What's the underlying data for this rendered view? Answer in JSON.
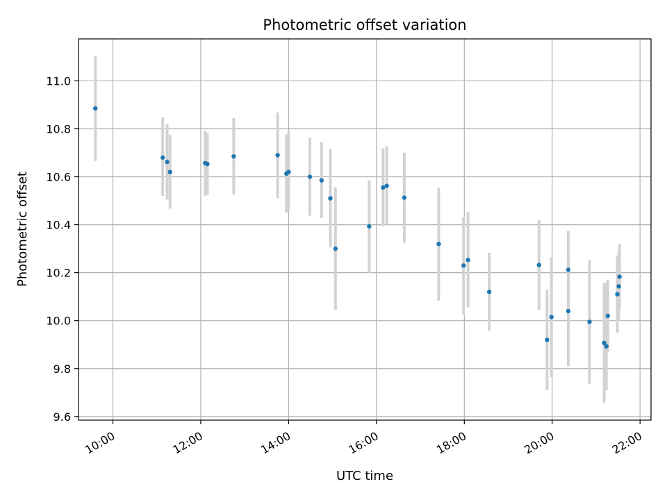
{
  "chart_data": {
    "type": "scatter",
    "title": "Photometric offset variation",
    "xlabel": "UTC time",
    "ylabel": "Photometric offset",
    "x_tick_labels": [
      "10:00",
      "12:00",
      "14:00",
      "16:00",
      "18:00",
      "20:00",
      "22:00"
    ],
    "y_tick_labels": [
      "9.6",
      "9.8",
      "10.0",
      "10.2",
      "10.4",
      "10.6",
      "10.8",
      "11.0"
    ],
    "xlim": [
      "09:13",
      "22:15"
    ],
    "ylim": [
      9.585,
      11.175
    ],
    "grid": true,
    "colors": {
      "point": "#1f77b4",
      "errorbar": "#d3d3d3",
      "grid": "#b0b0b0"
    },
    "points": [
      {
        "x": "09:36",
        "y": 10.885,
        "ylow": 10.665,
        "yhigh": 11.105
      },
      {
        "x": "11:08",
        "y": 10.68,
        "ylow": 10.52,
        "yhigh": 10.848
      },
      {
        "x": "11:14",
        "y": 10.662,
        "ylow": 10.505,
        "yhigh": 10.82
      },
      {
        "x": "11:18",
        "y": 10.62,
        "ylow": 10.467,
        "yhigh": 10.775
      },
      {
        "x": "12:06",
        "y": 10.657,
        "ylow": 10.52,
        "yhigh": 10.79
      },
      {
        "x": "12:09",
        "y": 10.653,
        "ylow": 10.525,
        "yhigh": 10.782
      },
      {
        "x": "12:45",
        "y": 10.685,
        "ylow": 10.525,
        "yhigh": 10.845
      },
      {
        "x": "13:45",
        "y": 10.69,
        "ylow": 10.51,
        "yhigh": 10.868
      },
      {
        "x": "13:57",
        "y": 10.613,
        "ylow": 10.45,
        "yhigh": 10.776
      },
      {
        "x": "14:00",
        "y": 10.62,
        "ylow": 10.46,
        "yhigh": 10.79
      },
      {
        "x": "14:29",
        "y": 10.6,
        "ylow": 10.438,
        "yhigh": 10.762
      },
      {
        "x": "14:45",
        "y": 10.585,
        "ylow": 10.428,
        "yhigh": 10.745
      },
      {
        "x": "14:57",
        "y": 10.51,
        "ylow": 10.305,
        "yhigh": 10.716
      },
      {
        "x": "15:04",
        "y": 10.3,
        "ylow": 10.045,
        "yhigh": 10.556
      },
      {
        "x": "15:50",
        "y": 10.393,
        "ylow": 10.2,
        "yhigh": 10.585
      },
      {
        "x": "16:09",
        "y": 10.555,
        "ylow": 10.393,
        "yhigh": 10.718
      },
      {
        "x": "16:14",
        "y": 10.562,
        "ylow": 10.4,
        "yhigh": 10.728
      },
      {
        "x": "16:38",
        "y": 10.513,
        "ylow": 10.325,
        "yhigh": 10.7
      },
      {
        "x": "17:25",
        "y": 10.32,
        "ylow": 10.083,
        "yhigh": 10.555
      },
      {
        "x": "17:59",
        "y": 10.23,
        "ylow": 10.025,
        "yhigh": 10.432
      },
      {
        "x": "18:05",
        "y": 10.253,
        "ylow": 10.055,
        "yhigh": 10.452
      },
      {
        "x": "18:34",
        "y": 10.12,
        "ylow": 9.957,
        "yhigh": 10.283
      },
      {
        "x": "19:42",
        "y": 10.232,
        "ylow": 10.045,
        "yhigh": 10.42
      },
      {
        "x": "19:53",
        "y": 9.92,
        "ylow": 9.71,
        "yhigh": 10.13
      },
      {
        "x": "19:59",
        "y": 10.015,
        "ylow": 9.765,
        "yhigh": 10.265
      },
      {
        "x": "20:22",
        "y": 10.212,
        "ylow": 10.05,
        "yhigh": 10.375
      },
      {
        "x": "20:22",
        "y": 10.04,
        "ylow": 9.81,
        "yhigh": 10.275
      },
      {
        "x": "20:51",
        "y": 9.995,
        "ylow": 9.737,
        "yhigh": 10.252
      },
      {
        "x": "21:11",
        "y": 9.907,
        "ylow": 9.658,
        "yhigh": 10.157
      },
      {
        "x": "21:14",
        "y": 9.893,
        "ylow": 9.71,
        "yhigh": 10.158
      },
      {
        "x": "21:16",
        "y": 10.02,
        "ylow": 9.87,
        "yhigh": 10.17
      },
      {
        "x": "21:29",
        "y": 10.11,
        "ylow": 9.95,
        "yhigh": 10.27
      },
      {
        "x": "21:31",
        "y": 10.143,
        "ylow": 10.0,
        "yhigh": 10.285
      },
      {
        "x": "21:32",
        "y": 10.183,
        "ylow": 10.05,
        "yhigh": 10.32
      }
    ]
  }
}
